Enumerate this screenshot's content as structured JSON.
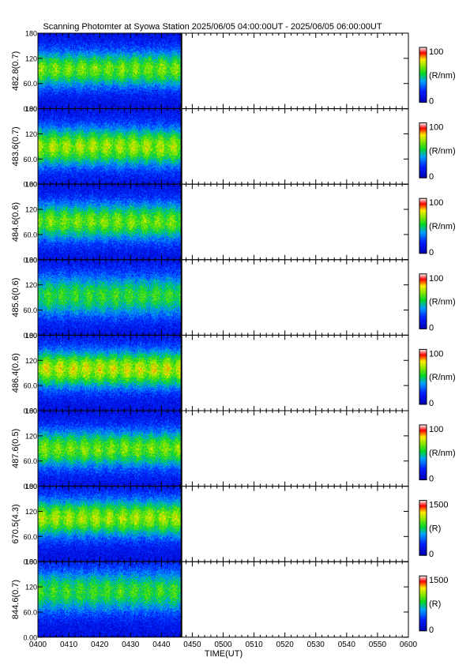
{
  "title": "Scanning Photomter at Syowa Station  2025/06/05 04:00:00UT - 2025/06/05 06:00:00UT",
  "chart_data": {
    "type": "heatmap",
    "title": "Scanning Photomter at Syowa Station  2025/06/05 04:00:00UT - 2025/06/05 06:00:00UT",
    "xlabel": "TIME(UT)",
    "x_tick_labels": [
      "0400",
      "0410",
      "0420",
      "0430",
      "0440",
      "0450",
      "0500",
      "0510",
      "0520",
      "0530",
      "0540",
      "0550",
      "0600"
    ],
    "x_range_minutes": [
      0,
      120
    ],
    "data_end_minutes": 46.5,
    "y_tick_labels": [
      "0.00",
      "60.0",
      "120",
      "180"
    ],
    "y_range": [
      0,
      180
    ],
    "colormap": "blue-green-yellow-red-white",
    "panels": [
      {
        "ylabel": "482.8(0.7)",
        "cbar_unit": "(R/nm)",
        "cbar_range": [
          0,
          100
        ],
        "cbar_max_label": "100",
        "cbar_min_label": "0",
        "level": 0.55,
        "center_y": 95,
        "width_y": 48
      },
      {
        "ylabel": "483.6(0.7)",
        "cbar_unit": "(R/nm)",
        "cbar_range": [
          0,
          100
        ],
        "cbar_max_label": "100",
        "cbar_min_label": "0",
        "level": 0.6,
        "center_y": 90,
        "width_y": 52
      },
      {
        "ylabel": "484.6(0.6)",
        "cbar_unit": "(R/nm)",
        "cbar_range": [
          0,
          100
        ],
        "cbar_max_label": "100",
        "cbar_min_label": "0",
        "level": 0.55,
        "center_y": 92,
        "width_y": 50
      },
      {
        "ylabel": "485.6(0.6)",
        "cbar_unit": "(R/nm)",
        "cbar_range": [
          0,
          100
        ],
        "cbar_max_label": "100",
        "cbar_min_label": "0",
        "level": 0.47,
        "center_y": 95,
        "width_y": 55
      },
      {
        "ylabel": "486.4(0.6)",
        "cbar_unit": "(R/nm)",
        "cbar_range": [
          0,
          100
        ],
        "cbar_max_label": "100",
        "cbar_min_label": "0",
        "level": 0.64,
        "center_y": 100,
        "width_y": 50
      },
      {
        "ylabel": "487.6(0.5)",
        "cbar_unit": "(R/nm)",
        "cbar_range": [
          0,
          100
        ],
        "cbar_max_label": "100",
        "cbar_min_label": "0",
        "level": 0.55,
        "center_y": 90,
        "width_y": 50
      },
      {
        "ylabel": "670.5(4.3)",
        "cbar_unit": "(R)",
        "cbar_range": [
          0,
          1500
        ],
        "cbar_max_label": "1500",
        "cbar_min_label": "0",
        "level": 0.6,
        "center_y": 105,
        "width_y": 50
      },
      {
        "ylabel": "844.6(0.7)",
        "cbar_unit": "(R)",
        "cbar_range": [
          0,
          1500
        ],
        "cbar_max_label": "1500",
        "cbar_min_label": "0",
        "level": 0.48,
        "center_y": 110,
        "width_y": 55
      }
    ]
  }
}
